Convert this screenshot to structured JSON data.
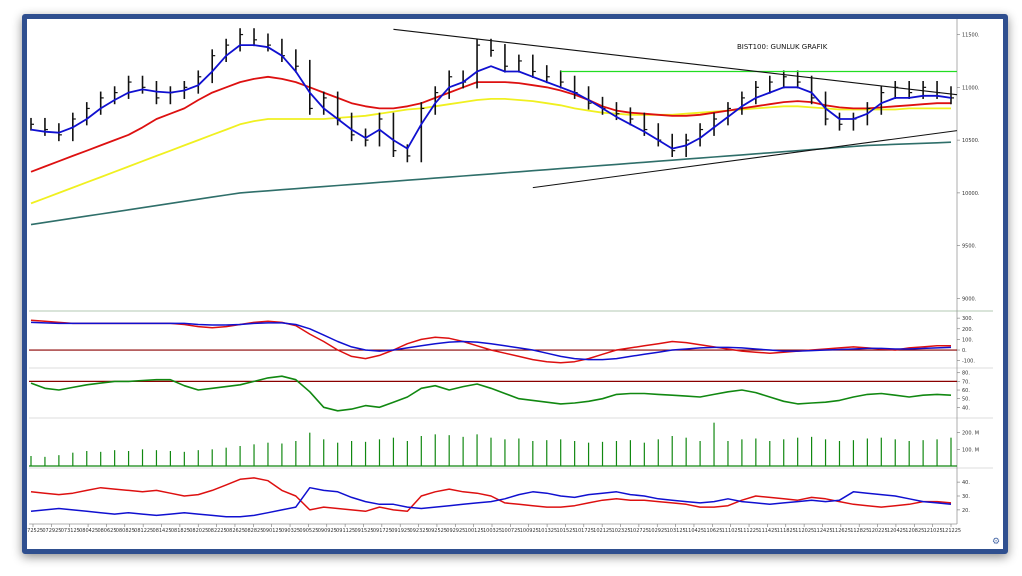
{
  "chart_data": {
    "type": "bar",
    "title": "BIST100: GUNLUK GRAFIK",
    "x_dates": [
      "072525",
      "072925",
      "073125",
      "080425",
      "080625",
      "080825",
      "081225",
      "081425",
      "081825",
      "082025",
      "082225",
      "082625",
      "082825",
      "090125",
      "090325",
      "090525",
      "090925",
      "091125",
      "091525",
      "091725",
      "091925",
      "092325",
      "092525",
      "092925",
      "100125",
      "100325",
      "100725",
      "100925",
      "101325",
      "101525",
      "101725",
      "102125",
      "102325",
      "102725",
      "102925",
      "103125",
      "110425",
      "110625",
      "111025",
      "111225",
      "111425",
      "111825",
      "112025",
      "112425",
      "112625",
      "112825",
      "120225",
      "120425",
      "120825",
      "121025",
      "121225"
    ],
    "price_axis": {
      "ylim": [
        8900,
        11600
      ],
      "ticks": [
        "11500.",
        "11000.",
        "10500.",
        "10000.",
        "9500.",
        "9000."
      ]
    },
    "price": {
      "close": [
        10650,
        10600,
        10550,
        10700,
        10800,
        10900,
        10950,
        11050,
        11000,
        10900,
        10950,
        11000,
        11100,
        11300,
        11400,
        11500,
        11450,
        11400,
        11300,
        11200,
        10800,
        10900,
        10700,
        10550,
        10500,
        10700,
        10400,
        10350,
        10800,
        10950,
        11100,
        11050,
        11400,
        11350,
        11200,
        11250,
        11150,
        11100,
        11050,
        10950,
        10850,
        10800,
        10750,
        10700,
        10600,
        10500,
        10400,
        10500,
        10600,
        10700,
        10800,
        10900,
        11000,
        11050,
        11100,
        11050,
        10900,
        10700,
        10650,
        10700,
        10800,
        10950,
        11000,
        10950,
        11000,
        10950,
        10900
      ],
      "ma_blue": [
        10600,
        10580,
        10570,
        10620,
        10700,
        10800,
        10880,
        10950,
        10980,
        10960,
        10950,
        10970,
        11020,
        11150,
        11300,
        11400,
        11400,
        11380,
        11300,
        11150,
        10950,
        10800,
        10700,
        10600,
        10520,
        10600,
        10500,
        10420,
        10650,
        10850,
        11000,
        11050,
        11150,
        11200,
        11150,
        11150,
        11100,
        11050,
        11000,
        10950,
        10880,
        10800,
        10720,
        10650,
        10580,
        10500,
        10420,
        10450,
        10520,
        10620,
        10720,
        10820,
        10900,
        10950,
        11000,
        11000,
        10950,
        10800,
        10700,
        10700,
        10750,
        10850,
        10900,
        10900,
        10920,
        10920,
        10900
      ],
      "ma_red": [
        10200,
        10250,
        10300,
        10350,
        10400,
        10450,
        10500,
        10550,
        10620,
        10700,
        10750,
        10800,
        10880,
        10950,
        11000,
        11050,
        11080,
        11100,
        11080,
        11050,
        11000,
        10950,
        10900,
        10850,
        10820,
        10800,
        10800,
        10820,
        10850,
        10900,
        10950,
        11000,
        11050,
        11050,
        11050,
        11040,
        11020,
        11000,
        10970,
        10930,
        10880,
        10820,
        10780,
        10760,
        10750,
        10740,
        10730,
        10730,
        10740,
        10760,
        10780,
        10800,
        10820,
        10840,
        10860,
        10870,
        10860,
        10830,
        10810,
        10800,
        10800,
        10810,
        10820,
        10830,
        10840,
        10850,
        10850
      ],
      "ma_yellow": [
        9900,
        9950,
        10000,
        10050,
        10100,
        10150,
        10200,
        10250,
        10300,
        10350,
        10400,
        10450,
        10500,
        10550,
        10600,
        10650,
        10680,
        10700,
        10700,
        10700,
        10700,
        10700,
        10710,
        10720,
        10730,
        10750,
        10770,
        10790,
        10800,
        10820,
        10840,
        10860,
        10880,
        10890,
        10890,
        10880,
        10870,
        10850,
        10830,
        10800,
        10780,
        10760,
        10750,
        10740,
        10740,
        10740,
        10740,
        10750,
        10760,
        10770,
        10780,
        10790,
        10800,
        10810,
        10820,
        10820,
        10810,
        10800,
        10790,
        10790,
        10790,
        10790,
        10790,
        10800,
        10800,
        10800,
        10800
      ],
      "ma_teal": [
        9700,
        9720,
        9740,
        9760,
        9780,
        9800,
        9820,
        9840,
        9860,
        9880,
        9900,
        9920,
        9940,
        9960,
        9980,
        10000,
        10010,
        10020,
        10030,
        10040,
        10050,
        10060,
        10070,
        10080,
        10090,
        10100,
        10110,
        10120,
        10130,
        10140,
        10150,
        10160,
        10170,
        10180,
        10190,
        10200,
        10210,
        10220,
        10230,
        10240,
        10250,
        10260,
        10270,
        10280,
        10290,
        10300,
        10310,
        10320,
        10330,
        10340,
        10350,
        10360,
        10370,
        10380,
        10390,
        10400,
        10410,
        10420,
        10430,
        10440,
        10450,
        10455,
        10460,
        10465,
        10470,
        10475,
        10480
      ]
    },
    "macd": {
      "ticks": [
        "300.",
        "200.",
        "100.",
        "0.",
        "-100."
      ],
      "red": [
        280,
        270,
        260,
        250,
        250,
        250,
        250,
        250,
        250,
        250,
        250,
        240,
        220,
        210,
        220,
        240,
        260,
        270,
        260,
        230,
        150,
        80,
        0,
        -60,
        -80,
        -50,
        0,
        60,
        100,
        120,
        110,
        80,
        40,
        0,
        -30,
        -60,
        -90,
        -110,
        -120,
        -110,
        -80,
        -40,
        0,
        20,
        40,
        60,
        80,
        70,
        50,
        30,
        10,
        -10,
        -20,
        -30,
        -20,
        -10,
        0,
        10,
        20,
        30,
        20,
        10,
        0,
        20,
        30,
        40,
        40
      ],
      "blue": [
        260,
        255,
        250,
        250,
        250,
        250,
        250,
        250,
        250,
        250,
        250,
        250,
        240,
        235,
        235,
        240,
        250,
        255,
        255,
        240,
        200,
        140,
        80,
        30,
        0,
        -10,
        0,
        20,
        40,
        60,
        75,
        80,
        75,
        60,
        40,
        20,
        0,
        -30,
        -60,
        -80,
        -90,
        -90,
        -80,
        -60,
        -40,
        -20,
        0,
        10,
        20,
        25,
        25,
        20,
        10,
        0,
        -10,
        -10,
        -5,
        0,
        5,
        10,
        15,
        15,
        10,
        10,
        15,
        20,
        25
      ]
    },
    "rsi": {
      "ticks": [
        "80.",
        "70.",
        "60.",
        "50.",
        "40."
      ],
      "values": [
        68,
        62,
        60,
        63,
        66,
        68,
        70,
        70,
        71,
        72,
        72,
        65,
        60,
        62,
        64,
        66,
        70,
        74,
        76,
        72,
        58,
        40,
        36,
        38,
        42,
        40,
        46,
        52,
        62,
        65,
        60,
        64,
        67,
        62,
        56,
        50,
        48,
        46,
        44,
        45,
        47,
        50,
        55,
        56,
        56,
        55,
        54,
        53,
        52,
        55,
        58,
        60,
        57,
        52,
        47,
        44,
        45,
        46,
        48,
        52,
        55,
        56,
        54,
        52,
        54,
        55,
        54
      ]
    },
    "volume": {
      "ticks": [
        "200. M",
        "100. M"
      ],
      "values": [
        60,
        55,
        65,
        80,
        90,
        85,
        95,
        90,
        100,
        95,
        90,
        85,
        95,
        100,
        110,
        120,
        130,
        140,
        135,
        150,
        200,
        160,
        140,
        150,
        145,
        160,
        170,
        150,
        180,
        190,
        185,
        175,
        190,
        170,
        160,
        165,
        150,
        155,
        160,
        150,
        140,
        145,
        150,
        155,
        140,
        160,
        180,
        170,
        150,
        260,
        150,
        160,
        165,
        150,
        160,
        170,
        175,
        160,
        150,
        155,
        165,
        170,
        160,
        150,
        155,
        160,
        170
      ]
    },
    "dmi": {
      "ticks": [
        "40.",
        "30.",
        "20."
      ],
      "red": [
        33,
        32,
        31,
        32,
        34,
        36,
        35,
        34,
        33,
        34,
        32,
        30,
        31,
        34,
        38,
        42,
        43,
        41,
        34,
        30,
        20,
        22,
        21,
        20,
        19,
        22,
        20,
        19,
        30,
        33,
        35,
        33,
        32,
        30,
        25,
        24,
        23,
        22,
        22,
        23,
        25,
        27,
        28,
        27,
        27,
        26,
        25,
        24,
        22,
        22,
        23,
        27,
        30,
        29,
        28,
        27,
        29,
        28,
        26,
        24,
        23,
        22,
        23,
        24,
        26,
        26,
        25
      ],
      "blue": [
        19,
        20,
        21,
        20,
        19,
        18,
        17,
        18,
        17,
        16,
        17,
        18,
        17,
        16,
        15,
        15,
        16,
        18,
        20,
        22,
        36,
        34,
        33,
        29,
        26,
        24,
        24,
        22,
        21,
        22,
        23,
        24,
        25,
        26,
        28,
        31,
        33,
        32,
        30,
        29,
        31,
        32,
        33,
        31,
        30,
        28,
        27,
        26,
        25,
        26,
        28,
        26,
        25,
        24,
        25,
        26,
        27,
        26,
        27,
        33,
        32,
        31,
        30,
        28,
        26,
        25,
        24
      ]
    },
    "levels": {
      "green_resistance": 11150,
      "descending_trendline": [
        11550,
        10930
      ],
      "ascending_trendline": [
        10050,
        10590
      ]
    },
    "colors": {
      "price_bar": "#111111",
      "ma_blue": "#1010d0",
      "ma_red": "#dd1010",
      "ma_yellow": "#f0f020",
      "ma_teal": "#2f6f6a",
      "resistance": "#22dd22",
      "rsi": "#118811",
      "volume": "#118811",
      "zero_line": "#8b0000"
    }
  }
}
